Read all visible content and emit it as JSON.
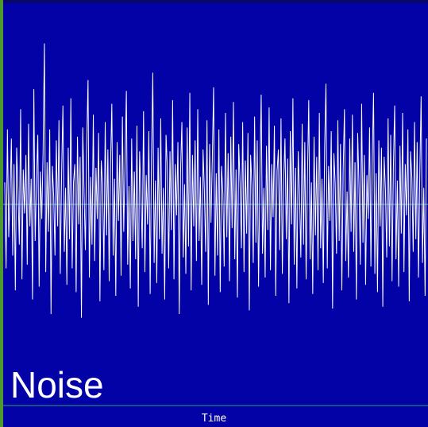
{
  "chart_data": {
    "type": "line",
    "label": "Noise",
    "xlabel": "Time",
    "ylabel": "",
    "grid": false,
    "colors": {
      "background": "#0202a6",
      "trace": "#ffffff",
      "baseline": "#3fa0c8",
      "axis": "#2aa06a",
      "left_edge": "#4f9a2e"
    },
    "ylim": [
      -1,
      1
    ],
    "series": [
      {
        "values": [
          0.12,
          -0.35,
          0.41,
          -0.18,
          0.05,
          0.36,
          -0.28,
          0.22,
          -0.47,
          0.31,
          0.08,
          -0.22,
          0.52,
          -0.41,
          0.19,
          -0.05,
          0.27,
          -0.33,
          0.44,
          -0.12,
          0.14,
          -0.52,
          0.63,
          -0.2,
          0.12,
          0.38,
          -0.45,
          0.18,
          -0.08,
          0.29,
          0.88,
          -0.37,
          0.23,
          -0.15,
          0.41,
          -0.6,
          0.21,
          0.05,
          -0.28,
          0.35,
          -0.12,
          0.46,
          -0.38,
          0.17,
          0.54,
          -0.26,
          0.09,
          -0.44,
          0.31,
          -0.19,
          0.58,
          -0.35,
          0.12,
          0.22,
          -0.48,
          0.37,
          -0.11,
          0.26,
          -0.62,
          0.42,
          0.06,
          -0.25,
          0.33,
          0.68,
          -0.4,
          0.15,
          -0.22,
          0.49,
          -0.31,
          0.2,
          -0.08,
          0.39,
          -0.53,
          0.24,
          0.11,
          -0.36,
          0.45,
          -0.17,
          0.3,
          -0.42,
          0.21,
          0.55,
          -0.28,
          0.14,
          -0.5,
          0.34,
          -0.09,
          0.27,
          -0.39,
          0.48,
          -0.15,
          0.23,
          0.62,
          -0.33,
          0.1,
          -0.46,
          0.36,
          -0.2,
          0.18,
          -0.3,
          0.43,
          -0.56,
          0.29,
          0.07,
          -0.24,
          0.51,
          -0.37,
          0.16,
          -0.11,
          0.4,
          -0.49,
          0.25,
          0.72,
          -0.32,
          0.13,
          -0.43,
          0.31,
          -0.19,
          0.47,
          -0.27,
          0.09,
          -0.52,
          0.38,
          0.2,
          -0.35,
          0.29,
          -0.14,
          0.57,
          -0.41,
          0.22,
          -0.06,
          0.34,
          -0.6,
          0.18,
          0.45,
          -0.29,
          0.11,
          -0.38,
          0.42,
          -0.23,
          0.61,
          -0.47,
          0.27,
          -0.12,
          0.35,
          -0.31,
          0.52,
          -0.2,
          0.15,
          -0.44,
          0.3,
          0.08,
          -0.26,
          0.46,
          -0.55,
          0.33,
          -0.1,
          0.24,
          0.64,
          -0.39,
          0.17,
          -0.28,
          0.41,
          -0.48,
          0.21,
          0.06,
          -0.34,
          0.5,
          -0.18,
          0.28,
          -0.42,
          0.37,
          -0.13,
          0.56,
          -0.3,
          0.19,
          -0.51,
          0.33,
          0.12,
          -0.24,
          0.45,
          -0.37,
          0.24,
          -0.16,
          0.39,
          -0.58,
          0.27,
          0.1,
          -0.32,
          0.48,
          -0.21,
          0.35,
          -0.45,
          0.16,
          0.6,
          -0.27,
          0.09,
          -0.4,
          0.32,
          -0.14,
          0.53,
          -0.36,
          0.22,
          -0.07,
          0.43,
          -0.5,
          0.18,
          0.3,
          -0.25,
          0.47,
          -0.38,
          0.13,
          0.36,
          -0.19,
          0.25,
          -0.54,
          0.4,
          -0.11,
          0.58,
          -0.33,
          0.2,
          -0.46,
          0.29,
          0.05,
          -0.29,
          0.44,
          -0.22,
          0.34,
          -0.41,
          0.15,
          0.57,
          -0.3,
          0.12,
          -0.49,
          0.37,
          -0.17,
          0.26,
          -0.36,
          0.5,
          -0.24,
          0.14,
          -0.43,
          0.31,
          0.66,
          -0.35,
          0.21,
          -0.09,
          0.4,
          -0.57,
          0.28,
          0.11,
          -0.27,
          0.46,
          -0.2,
          0.33,
          -0.47,
          0.18,
          0.52,
          -0.31,
          0.07,
          -0.4,
          0.36,
          -0.15,
          0.49,
          -0.26,
          0.23,
          -0.52,
          0.39,
          0.1,
          -0.33,
          0.55,
          -0.21,
          0.27,
          -0.44,
          0.16,
          -0.08,
          0.42,
          -0.34,
          0.24,
          0.61,
          -0.38,
          0.17,
          -0.48,
          0.35,
          -0.12,
          0.31,
          -0.56,
          0.26,
          0.08,
          -0.29,
          0.47,
          -0.23,
          0.38,
          -0.42,
          0.2,
          0.54,
          -0.3,
          0.13,
          -0.45,
          0.32,
          -0.16,
          0.5,
          -0.37,
          0.22,
          -0.06,
          0.41,
          -0.53,
          0.29,
          0.14,
          -0.26,
          0.45,
          -0.19,
          0.34,
          -0.4,
          0.17,
          0.59,
          -0.32,
          0.09,
          -0.5,
          0.36
        ]
      }
    ]
  }
}
